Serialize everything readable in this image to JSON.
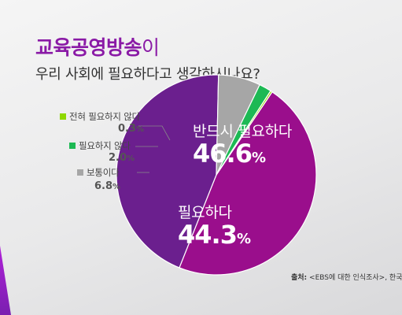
{
  "header": {
    "title_main": "교육공영방송",
    "title_suffix": "이",
    "subtitle": "우리 사회에 필요하다고 생각하시나요?"
  },
  "chart_data": {
    "type": "pie",
    "title": "교육공영방송이 우리 사회에 필요하다고 생각하시나요?",
    "unit": "%",
    "slices": [
      {
        "label": "반드시 필요하다",
        "value": 46.6,
        "value_text": "46.6",
        "color": "#9a0e8c"
      },
      {
        "label": "필요하다",
        "value": 44.3,
        "value_text": "44.3",
        "color": "#6b1f8e"
      },
      {
        "label": "보통이다",
        "value": 6.8,
        "value_text": "6.8",
        "color": "#a6a6a6"
      },
      {
        "label": "필요하지 않다",
        "value": 2.0,
        "value_text": "2.0",
        "color": "#1db954"
      },
      {
        "label": "전혀 필요하지 않다",
        "value": 0.3,
        "value_text": "0.3",
        "color": "#8fd800"
      }
    ]
  },
  "source": {
    "label": "출처:",
    "text": " <EBS에 대한 인식조사>, 한국리"
  }
}
